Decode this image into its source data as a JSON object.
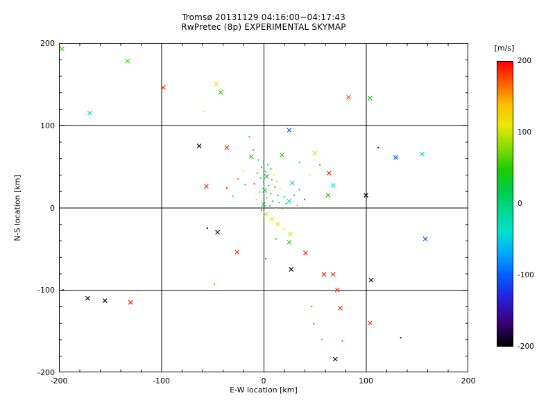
{
  "chart_data": {
    "type": "scatter",
    "title_lines": [
      "Tromsø 20131129 04:16:00−04:17:43",
      "RwPretec (8p) EXPERIMENTAL SKYMAP"
    ],
    "xlabel": "E-W location [km]",
    "ylabel": "N-S location [km]",
    "xlim": [
      -200,
      200
    ],
    "ylim": [
      -200,
      200
    ],
    "x_ticks": [
      -200,
      -100,
      0,
      100,
      200
    ],
    "y_ticks": [
      200,
      100,
      0,
      -100,
      -200
    ],
    "minor_tick_step": 20,
    "grid_lines": [
      -100,
      0,
      100
    ],
    "grid": true,
    "colorbar": {
      "unit_label": "[m/s]",
      "ticks": [
        200,
        100,
        0,
        -100,
        -200
      ],
      "range": [
        -200,
        200
      ],
      "stops": [
        [
          -200,
          "#000000"
        ],
        [
          -165,
          "#3a0080"
        ],
        [
          -130,
          "#2424e0"
        ],
        [
          -100,
          "#0060ff"
        ],
        [
          -70,
          "#00a8ff"
        ],
        [
          -40,
          "#00e0d0"
        ],
        [
          -10,
          "#00d890"
        ],
        [
          20,
          "#00cc44"
        ],
        [
          50,
          "#22cc00"
        ],
        [
          80,
          "#88dd00"
        ],
        [
          110,
          "#e8e800"
        ],
        [
          140,
          "#ffbf00"
        ],
        [
          170,
          "#ff5f00"
        ],
        [
          200,
          "#ff0000"
        ]
      ]
    },
    "marker_types": {
      "x": "cross",
      "d": "dot"
    },
    "points": [
      [
        -197,
        193,
        60,
        "x"
      ],
      [
        -133,
        178,
        55,
        "x"
      ],
      [
        -170,
        115,
        -25,
        "x"
      ],
      [
        -98,
        146,
        185,
        "x"
      ],
      [
        -46,
        150,
        120,
        "x"
      ],
      [
        -42,
        140,
        50,
        "x"
      ],
      [
        -58,
        117,
        115,
        "d"
      ],
      [
        83,
        134,
        185,
        "x"
      ],
      [
        104,
        133,
        45,
        "x"
      ],
      [
        -63,
        75,
        -195,
        "x"
      ],
      [
        -36,
        73,
        190,
        "x"
      ],
      [
        25,
        94,
        -110,
        "x"
      ],
      [
        18,
        64,
        50,
        "x"
      ],
      [
        50,
        66,
        120,
        "x"
      ],
      [
        112,
        73,
        -195,
        "d"
      ],
      [
        129,
        61,
        -105,
        "x"
      ],
      [
        155,
        65,
        -35,
        "x"
      ],
      [
        64,
        42,
        190,
        "x"
      ],
      [
        68,
        27,
        -40,
        "x"
      ],
      [
        63,
        15,
        45,
        "x"
      ],
      [
        100,
        15,
        -195,
        "x"
      ],
      [
        -12,
        62,
        40,
        "x"
      ],
      [
        -5,
        58,
        -20,
        "d"
      ],
      [
        0,
        55,
        30,
        "d"
      ],
      [
        4,
        52,
        -40,
        "d"
      ],
      [
        -2,
        49,
        45,
        "d"
      ],
      [
        7,
        47,
        25,
        "d"
      ],
      [
        2,
        44,
        -15,
        "d"
      ],
      [
        -6,
        42,
        50,
        "d"
      ],
      [
        10,
        40,
        110,
        "d"
      ],
      [
        3,
        38,
        30,
        "x"
      ],
      [
        -3,
        36,
        -30,
        "d"
      ],
      [
        8,
        34,
        40,
        "d"
      ],
      [
        13,
        32,
        95,
        "d"
      ],
      [
        0,
        31,
        25,
        "d"
      ],
      [
        -9,
        29,
        185,
        "d"
      ],
      [
        5,
        27,
        -20,
        "d"
      ],
      [
        11,
        25,
        45,
        "d"
      ],
      [
        16,
        23,
        115,
        "d"
      ],
      [
        1,
        21,
        35,
        "x"
      ],
      [
        -4,
        19,
        -35,
        "d"
      ],
      [
        7,
        17,
        50,
        "d"
      ],
      [
        14,
        15,
        30,
        "d"
      ],
      [
        20,
        13,
        -15,
        "d"
      ],
      [
        3,
        12,
        45,
        "d"
      ],
      [
        -7,
        10,
        120,
        "d"
      ],
      [
        9,
        8,
        35,
        "d"
      ],
      [
        15,
        6,
        -25,
        "d"
      ],
      [
        22,
        5,
        40,
        "d"
      ],
      [
        0,
        4,
        30,
        "x"
      ],
      [
        6,
        2,
        -40,
        "d"
      ],
      [
        12,
        0,
        45,
        "d"
      ],
      [
        18,
        -2,
        110,
        "d"
      ],
      [
        -2,
        -3,
        35,
        "d"
      ],
      [
        25,
        8,
        -20,
        "x"
      ],
      [
        30,
        15,
        45,
        "d"
      ],
      [
        28,
        30,
        -35,
        "x"
      ],
      [
        35,
        22,
        30,
        "d"
      ],
      [
        33,
        3,
        160,
        "d"
      ],
      [
        40,
        10,
        190,
        "d"
      ],
      [
        2,
        -8,
        120,
        "x"
      ],
      [
        8,
        -14,
        115,
        "x"
      ],
      [
        14,
        -20,
        120,
        "x"
      ],
      [
        20,
        -26,
        110,
        "d"
      ],
      [
        26,
        -32,
        120,
        "x"
      ],
      [
        -56,
        26,
        190,
        "x"
      ],
      [
        -36,
        24,
        185,
        "d"
      ],
      [
        -25,
        35,
        160,
        "d"
      ],
      [
        -18,
        28,
        45,
        "d"
      ],
      [
        -30,
        14,
        -25,
        "d"
      ],
      [
        -20,
        45,
        120,
        "d"
      ],
      [
        -45,
        -30,
        -195,
        "x"
      ],
      [
        -55,
        -25,
        -195,
        "d"
      ],
      [
        -26,
        -54,
        190,
        "x"
      ],
      [
        2,
        -62,
        185,
        "d"
      ],
      [
        27,
        -75,
        -195,
        "x"
      ],
      [
        41,
        -55,
        190,
        "x"
      ],
      [
        25,
        -42,
        45,
        "x"
      ],
      [
        12,
        -38,
        30,
        "d"
      ],
      [
        158,
        -38,
        -105,
        "x"
      ],
      [
        59,
        -81,
        190,
        "x"
      ],
      [
        68,
        -81,
        185,
        "x"
      ],
      [
        72,
        -100,
        190,
        "x"
      ],
      [
        105,
        -88,
        -195,
        "x"
      ],
      [
        -48,
        -93,
        165,
        "d"
      ],
      [
        -196,
        -100,
        -195,
        "d"
      ],
      [
        -172,
        -110,
        -195,
        "x"
      ],
      [
        -155,
        -113,
        -195,
        "x"
      ],
      [
        -130,
        -115,
        190,
        "x"
      ],
      [
        47,
        -120,
        40,
        "d"
      ],
      [
        75,
        -122,
        190,
        "x"
      ],
      [
        49,
        -141,
        45,
        "d"
      ],
      [
        104,
        -140,
        190,
        "x"
      ],
      [
        57,
        -160,
        -40,
        "d"
      ],
      [
        77,
        -162,
        40,
        "d"
      ],
      [
        134,
        -158,
        -195,
        "d"
      ],
      [
        70,
        -184,
        -195,
        "x"
      ],
      [
        -14,
        86,
        30,
        "d"
      ],
      [
        35,
        55,
        -20,
        "d"
      ],
      [
        45,
        40,
        120,
        "d"
      ],
      [
        -10,
        70,
        45,
        "d"
      ],
      [
        55,
        52,
        30,
        "d"
      ]
    ]
  }
}
